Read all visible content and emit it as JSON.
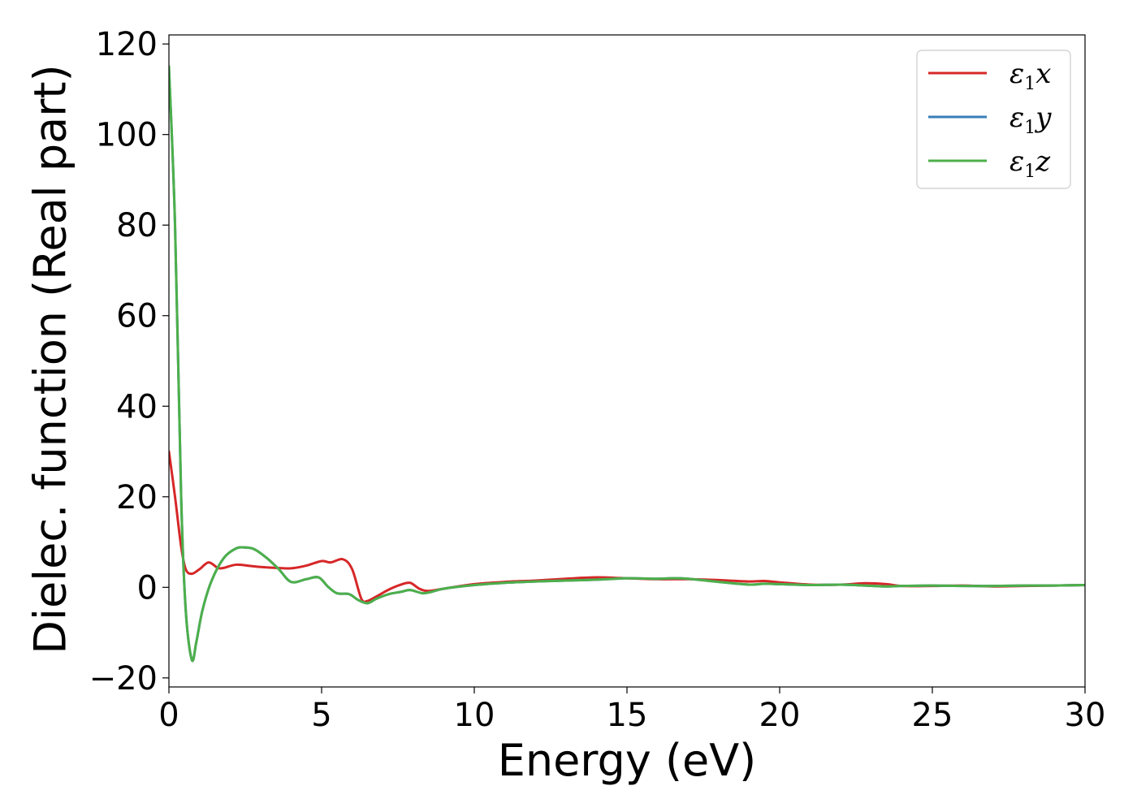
{
  "chart_data": {
    "type": "line",
    "title": "",
    "xlabel": "Energy (eV)",
    "ylabel": "Dielec. function (Real part)",
    "xlim": [
      0,
      30
    ],
    "ylim": [
      -22,
      122
    ],
    "xticks": [
      0,
      5,
      10,
      15,
      20,
      25,
      30
    ],
    "xtick_labels": [
      "0",
      "5",
      "10",
      "15",
      "20",
      "25",
      "30"
    ],
    "yticks": [
      -20,
      0,
      20,
      40,
      60,
      80,
      100,
      120
    ],
    "ytick_labels": [
      "−20",
      "0",
      "20",
      "40",
      "60",
      "80",
      "100",
      "120"
    ],
    "grid": false,
    "legend_position": "top-right",
    "series": [
      {
        "name": "ε1x",
        "legend": {
          "main": "ε",
          "sub": "1",
          "axis": "x"
        },
        "color": "#d62728",
        "x": [
          0,
          0.2,
          0.4,
          0.55,
          0.75,
          1.0,
          1.3,
          1.6,
          1.8,
          2.2,
          2.7,
          3.0,
          3.5,
          4.0,
          4.5,
          5.0,
          5.3,
          5.7,
          6.0,
          6.3,
          6.5,
          6.8,
          7.2,
          7.6,
          7.9,
          8.2,
          8.5,
          9.0,
          10.0,
          11.0,
          12.0,
          13.0,
          14.0,
          15.0,
          16.0,
          17.0,
          18.0,
          19.0,
          19.5,
          20.0,
          21.0,
          22.0,
          22.8,
          23.5,
          24.0,
          25.0,
          26.0,
          27.0,
          28.0,
          29.0,
          30.0
        ],
        "y": [
          30,
          20,
          9,
          4,
          3,
          4,
          5.5,
          4.3,
          4.3,
          5,
          4.7,
          4.5,
          4.3,
          4.2,
          4.8,
          5.8,
          5.5,
          6.2,
          4.0,
          -2.5,
          -3.0,
          -2.0,
          -0.5,
          0.6,
          1.0,
          -0.3,
          -0.8,
          -0.3,
          0.7,
          1.2,
          1.5,
          1.9,
          2.2,
          2.0,
          1.8,
          1.8,
          1.6,
          1.3,
          1.4,
          1.1,
          0.6,
          0.6,
          0.9,
          0.7,
          0.3,
          0.3,
          0.4,
          0.2,
          0.3,
          0.4,
          0.5
        ]
      },
      {
        "name": "ε1y",
        "legend": {
          "main": "ε",
          "sub": "1",
          "axis": "y"
        },
        "color": "#377eb8",
        "x": [
          0,
          0.2,
          0.4,
          0.55,
          0.75,
          0.9,
          1.1,
          1.4,
          1.8,
          2.2,
          2.5,
          2.8,
          3.2,
          3.6,
          4.0,
          4.5,
          4.9,
          5.2,
          5.5,
          5.9,
          6.2,
          6.5,
          6.8,
          7.2,
          7.6,
          7.9,
          8.3,
          8.6,
          9.0,
          10.0,
          11.0,
          12.0,
          13.0,
          14.0,
          15.0,
          16.0,
          16.5,
          17.0,
          18.0,
          19.0,
          19.5,
          20.0,
          21.0,
          22.0,
          22.8,
          23.5,
          24.0,
          25.0,
          26.0,
          27.0,
          28.0,
          29.0,
          30.0
        ],
        "y": [
          115,
          80,
          20,
          -5,
          -16,
          -12,
          -5,
          1.5,
          6.5,
          8.6,
          8.8,
          8.4,
          6.5,
          4,
          1.2,
          1.8,
          2.2,
          0.2,
          -1.3,
          -1.5,
          -2.8,
          -3.5,
          -2.5,
          -1.5,
          -1.0,
          -0.6,
          -1.3,
          -1.0,
          -0.3,
          0.5,
          1.0,
          1.3,
          1.5,
          1.7,
          2.0,
          1.9,
          2.0,
          1.9,
          1.2,
          0.6,
          0.8,
          0.7,
          0.5,
          0.6,
          0.4,
          0.2,
          0.3,
          0.4,
          0.3,
          0.3,
          0.4,
          0.4,
          0.5
        ]
      },
      {
        "name": "ε1z",
        "legend": {
          "main": "ε",
          "sub": "1",
          "axis": "z"
        },
        "color": "#4daf4a",
        "x": [
          0,
          0.2,
          0.4,
          0.55,
          0.75,
          0.9,
          1.1,
          1.4,
          1.8,
          2.2,
          2.5,
          2.8,
          3.2,
          3.6,
          4.0,
          4.5,
          4.9,
          5.2,
          5.5,
          5.9,
          6.2,
          6.5,
          6.8,
          7.2,
          7.6,
          7.9,
          8.3,
          8.6,
          9.0,
          10.0,
          11.0,
          12.0,
          13.0,
          14.0,
          15.0,
          16.0,
          16.5,
          17.0,
          18.0,
          19.0,
          19.5,
          20.0,
          21.0,
          22.0,
          22.8,
          23.5,
          24.0,
          25.0,
          26.0,
          27.0,
          28.0,
          29.0,
          30.0
        ],
        "y": [
          115,
          80,
          20,
          -5,
          -16,
          -12,
          -5,
          1.5,
          6.5,
          8.6,
          8.8,
          8.4,
          6.5,
          4,
          1.2,
          1.8,
          2.2,
          0.2,
          -1.3,
          -1.5,
          -2.8,
          -3.5,
          -2.5,
          -1.5,
          -1.0,
          -0.6,
          -1.3,
          -1.0,
          -0.3,
          0.5,
          1.0,
          1.3,
          1.5,
          1.7,
          2.0,
          1.9,
          2.0,
          1.9,
          1.2,
          0.6,
          0.8,
          0.7,
          0.5,
          0.6,
          0.4,
          0.2,
          0.3,
          0.4,
          0.3,
          0.3,
          0.4,
          0.4,
          0.5
        ]
      }
    ]
  }
}
